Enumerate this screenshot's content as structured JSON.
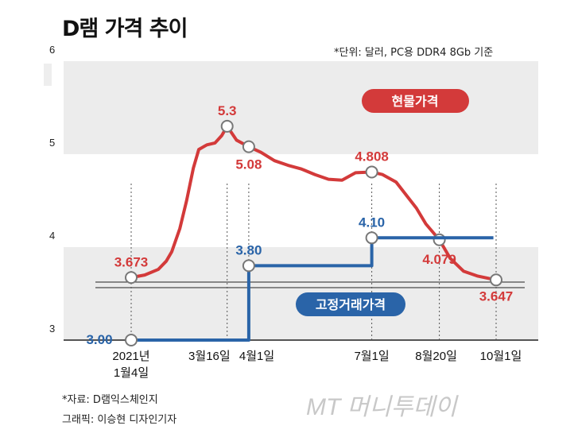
{
  "title": "D램 가격 추이",
  "unit_note": "*단위: 달러, PC용 DDR4 8Gb 기준",
  "source": "*자료: D램익스체인지",
  "graphic_credit": "그래픽: 이승현 디자인기자",
  "watermark": "MT 머니투데이",
  "colors": {
    "spot": "#d33a3a",
    "contract": "#2a64a8",
    "band": "#ececec"
  },
  "chart_data": {
    "type": "line",
    "title": "D램 가격 추이",
    "ylabel": "달러",
    "ylim": [
      3,
      6
    ],
    "yticks": [
      "3",
      "4",
      "5",
      "6"
    ],
    "x_unit": "day of 2021",
    "xticks": [
      {
        "day": 4,
        "label": "2021년",
        "label2": "1월4일"
      },
      {
        "day": 75,
        "label": "3월16일"
      },
      {
        "day": 91,
        "label": "4월1일"
      },
      {
        "day": 182,
        "label": "7월1일"
      },
      {
        "day": 232,
        "label": "8월20일"
      },
      {
        "day": 274,
        "label": "10월1일"
      }
    ],
    "series": [
      {
        "name": "현물가격",
        "color": "#d33a3a",
        "points": [
          [
            4,
            3.673
          ],
          [
            14,
            3.7
          ],
          [
            24,
            3.76
          ],
          [
            30,
            3.85
          ],
          [
            34,
            3.95
          ],
          [
            40,
            4.2
          ],
          [
            45,
            4.5
          ],
          [
            50,
            4.85
          ],
          [
            54,
            5.05
          ],
          [
            60,
            5.1
          ],
          [
            66,
            5.12
          ],
          [
            71,
            5.2
          ],
          [
            75,
            5.3
          ],
          [
            82,
            5.15
          ],
          [
            91,
            5.08
          ],
          [
            100,
            5.02
          ],
          [
            110,
            4.93
          ],
          [
            120,
            4.88
          ],
          [
            130,
            4.84
          ],
          [
            140,
            4.78
          ],
          [
            150,
            4.73
          ],
          [
            160,
            4.72
          ],
          [
            170,
            4.8
          ],
          [
            182,
            4.808
          ],
          [
            190,
            4.78
          ],
          [
            200,
            4.7
          ],
          [
            208,
            4.55
          ],
          [
            215,
            4.42
          ],
          [
            222,
            4.25
          ],
          [
            232,
            4.079
          ],
          [
            240,
            3.88
          ],
          [
            250,
            3.74
          ],
          [
            260,
            3.69
          ],
          [
            274,
            3.647
          ]
        ],
        "labels": [
          {
            "day": 4,
            "value": "3.673"
          },
          {
            "day": 75,
            "value": "5.3"
          },
          {
            "day": 91,
            "value": "5.08"
          },
          {
            "day": 182,
            "value": "4.808"
          },
          {
            "day": 232,
            "value": "4.079"
          },
          {
            "day": 274,
            "value": "3.647"
          }
        ]
      },
      {
        "name": "고정거래가격",
        "color": "#2a64a8",
        "points": [
          [
            4,
            3.0
          ],
          [
            91,
            3.0
          ],
          [
            91,
            3.8
          ],
          [
            182,
            3.8
          ],
          [
            182,
            4.1
          ],
          [
            272,
            4.1
          ]
        ],
        "labels": [
          {
            "day": 4,
            "value": "3.00"
          },
          {
            "day": 91,
            "value": "3.80"
          },
          {
            "day": 182,
            "value": "4.10"
          }
        ]
      }
    ],
    "legend_placement": "inline"
  }
}
